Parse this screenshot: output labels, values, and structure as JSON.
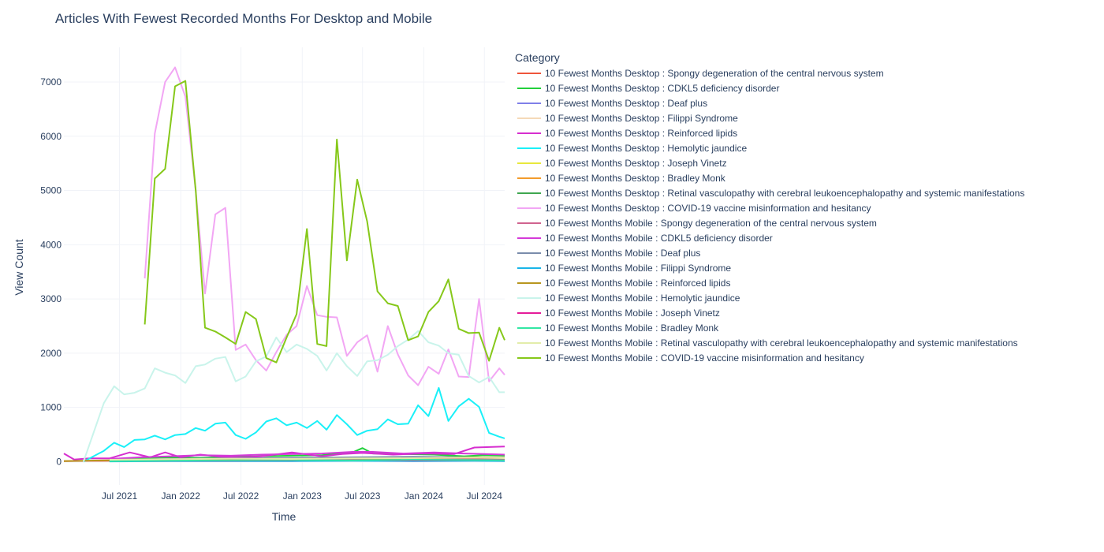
{
  "chart_data": {
    "type": "line",
    "title": "Articles With Fewest Recorded Months For Desktop and Mobile",
    "xlabel": "Time",
    "ylabel": "View Count",
    "x_ticks": [
      "Jul 2021",
      "Jan 2022",
      "Jul 2022",
      "Jan 2023",
      "Jul 2023",
      "Jan 2024",
      "Jul 2024"
    ],
    "y_ticks": [
      0,
      1000,
      2000,
      3000,
      4000,
      5000,
      6000,
      7000
    ],
    "xlim": [
      "2021-01-15",
      "2024-08-31"
    ],
    "ylim": [
      -430,
      7640
    ],
    "grid": true,
    "legend_title": "Category",
    "legend_position": "right",
    "series": [
      {
        "name": "10 Fewest Months Desktop : Spongy degeneration of the central nervous system",
        "color": "#EF553B",
        "x": [
          "2021-01-15",
          "2021-04-01",
          "2021-08-01",
          "2021-12-01",
          "2022-04-01",
          "2022-08-01",
          "2022-12-01",
          "2023-04-01",
          "2023-08-01",
          "2023-12-01",
          "2024-03-01",
          "2024-06-01",
          "2024-08-31"
        ],
        "y": [
          10,
          15,
          20,
          15,
          25,
          20,
          30,
          20,
          35,
          30,
          60,
          30,
          20
        ]
      },
      {
        "name": "10 Fewest Months Desktop : CDKL5 deficiency disorder",
        "color": "#22D03C",
        "x": [
          "2021-06-01",
          "2021-09-01",
          "2021-12-01",
          "2022-03-01",
          "2022-06-01",
          "2022-09-01",
          "2022-12-01",
          "2023-03-01",
          "2023-06-01",
          "2023-07-01",
          "2023-08-01",
          "2023-11-01",
          "2024-02-01",
          "2024-05-01",
          "2024-07-01",
          "2024-08-31"
        ],
        "y": [
          40,
          60,
          80,
          70,
          90,
          100,
          110,
          120,
          170,
          250,
          150,
          140,
          130,
          100,
          120,
          110
        ]
      },
      {
        "name": "10 Fewest Months Desktop : Deaf plus",
        "color": "#7F7FE8",
        "x": [
          "2021-06-01",
          "2021-12-01",
          "2022-06-01",
          "2022-12-01",
          "2023-06-01",
          "2023-12-01",
          "2024-06-01",
          "2024-08-31"
        ],
        "y": [
          20,
          30,
          25,
          40,
          35,
          45,
          40,
          30
        ]
      },
      {
        "name": "10 Fewest Months Desktop : Filippi Syndrome",
        "color": "#F5D9B8",
        "x": [
          "2021-06-01",
          "2021-12-01",
          "2022-06-01",
          "2022-12-01",
          "2023-06-01",
          "2023-12-01",
          "2024-06-01",
          "2024-08-31"
        ],
        "y": [
          15,
          20,
          20,
          25,
          30,
          25,
          35,
          25
        ]
      },
      {
        "name": "10 Fewest Months Desktop : Reinforced lipids",
        "color": "#D62ECF",
        "x": [
          "2021-01-15",
          "2021-02-15",
          "2021-04-01",
          "2021-06-01",
          "2021-08-01",
          "2021-10-01",
          "2021-11-15",
          "2022-01-01",
          "2022-03-01",
          "2022-05-01",
          "2022-07-01",
          "2022-09-01",
          "2022-12-01",
          "2023-03-01",
          "2023-05-01",
          "2023-07-01",
          "2023-10-01",
          "2024-01-01",
          "2024-04-01",
          "2024-06-01",
          "2024-08-31"
        ],
        "y": [
          150,
          40,
          60,
          60,
          170,
          80,
          170,
          80,
          130,
          90,
          80,
          100,
          170,
          100,
          140,
          160,
          130,
          150,
          140,
          260,
          280
        ]
      },
      {
        "name": "10 Fewest Months Desktop : Hemolytic jaundice",
        "color": "#1AF0F8",
        "x": [
          "2021-03-15",
          "2021-05-15",
          "2021-06-15",
          "2021-07-15",
          "2021-08-15",
          "2021-09-15",
          "2021-10-15",
          "2021-11-15",
          "2021-12-15",
          "2022-01-15",
          "2022-02-15",
          "2022-03-15",
          "2022-04-15",
          "2022-05-15",
          "2022-06-15",
          "2022-07-15",
          "2022-08-15",
          "2022-09-15",
          "2022-10-15",
          "2022-11-15",
          "2022-12-15",
          "2023-01-15",
          "2023-02-15",
          "2023-03-15",
          "2023-04-15",
          "2023-05-15",
          "2023-06-15",
          "2023-07-15",
          "2023-08-15",
          "2023-09-15",
          "2023-10-15",
          "2023-11-15",
          "2023-12-15",
          "2024-01-15",
          "2024-02-15",
          "2024-03-15",
          "2024-04-15",
          "2024-05-15",
          "2024-06-15",
          "2024-07-15",
          "2024-08-15",
          "2024-08-31"
        ],
        "y": [
          0,
          200,
          350,
          270,
          400,
          410,
          480,
          410,
          490,
          510,
          620,
          570,
          700,
          720,
          490,
          420,
          540,
          740,
          800,
          670,
          720,
          620,
          750,
          590,
          860,
          690,
          490,
          570,
          600,
          780,
          690,
          700,
          1040,
          840,
          1360,
          750,
          1020,
          1160,
          1010,
          530,
          460,
          430
        ]
      },
      {
        "name": "10 Fewest Months Desktop : Joseph Vinetz",
        "color": "#E8E83D",
        "x": [
          "2021-06-01",
          "2021-12-01",
          "2022-06-01",
          "2022-12-01",
          "2023-06-01",
          "2023-12-01",
          "2024-06-01",
          "2024-08-31"
        ],
        "y": [
          10,
          15,
          20,
          15,
          20,
          25,
          20,
          15
        ]
      },
      {
        "name": "10 Fewest Months Desktop : Bradley Monk",
        "color": "#F39C2C",
        "x": [
          "2021-06-01",
          "2021-12-01",
          "2022-06-01",
          "2022-12-01",
          "2023-06-01",
          "2023-12-01",
          "2024-06-01",
          "2024-08-31"
        ],
        "y": [
          20,
          25,
          30,
          35,
          30,
          40,
          50,
          40
        ]
      },
      {
        "name": "10 Fewest Months Desktop : Retinal vasculopathy with cerebral leukoencephalopathy and systemic manifestations",
        "color": "#3FA74F",
        "x": [
          "2021-06-01",
          "2021-12-01",
          "2022-06-01",
          "2022-12-01",
          "2023-06-01",
          "2023-12-01",
          "2024-06-01",
          "2024-08-31"
        ],
        "y": [
          30,
          40,
          50,
          45,
          55,
          60,
          70,
          60
        ]
      },
      {
        "name": "10 Fewest Months Desktop : COVID-19 vaccine misinformation and hesitancy",
        "color": "#F2A6F4",
        "x": [
          "2021-09-15",
          "2021-10-15",
          "2021-11-15",
          "2021-12-15",
          "2022-01-15",
          "2022-02-15",
          "2022-03-15",
          "2022-04-15",
          "2022-05-15",
          "2022-06-15",
          "2022-07-15",
          "2022-08-15",
          "2022-09-15",
          "2022-10-15",
          "2022-11-15",
          "2022-12-15",
          "2023-01-15",
          "2023-02-15",
          "2023-03-15",
          "2023-04-15",
          "2023-05-15",
          "2023-06-15",
          "2023-07-15",
          "2023-08-15",
          "2023-09-15",
          "2023-10-15",
          "2023-11-15",
          "2023-12-15",
          "2024-01-15",
          "2024-02-15",
          "2024-03-15",
          "2024-04-15",
          "2024-05-15",
          "2024-06-15",
          "2024-07-15",
          "2024-08-15",
          "2024-08-31"
        ],
        "y": [
          3380,
          6050,
          7000,
          7270,
          6730,
          5000,
          3100,
          4560,
          4680,
          2060,
          2160,
          1870,
          1680,
          2020,
          2340,
          2500,
          3240,
          2700,
          2670,
          2660,
          1950,
          2200,
          2330,
          1660,
          2500,
          1980,
          1590,
          1410,
          1750,
          1620,
          2070,
          1570,
          1560,
          3000,
          1480,
          1720,
          1600
        ]
      },
      {
        "name": "10 Fewest Months Mobile : Spongy degeneration of the central nervous system",
        "color": "#D0638F",
        "x": [
          "2021-06-01",
          "2021-12-01",
          "2022-06-01",
          "2022-12-01",
          "2023-06-01",
          "2023-12-01",
          "2024-06-01",
          "2024-08-31"
        ],
        "y": [
          25,
          30,
          40,
          35,
          45,
          50,
          60,
          50
        ]
      },
      {
        "name": "10 Fewest Months Mobile : CDKL5 deficiency disorder",
        "color": "#D43AD8",
        "x": [
          "2021-06-01",
          "2021-09-01",
          "2021-12-01",
          "2022-03-01",
          "2022-06-01",
          "2022-09-01",
          "2022-12-01",
          "2023-03-01",
          "2023-06-01",
          "2023-08-01",
          "2023-11-01",
          "2024-02-01",
          "2024-05-01",
          "2024-07-01",
          "2024-08-31"
        ],
        "y": [
          50,
          80,
          100,
          120,
          110,
          130,
          140,
          150,
          180,
          180,
          150,
          170,
          150,
          140,
          130
        ]
      },
      {
        "name": "10 Fewest Months Mobile : Deaf plus",
        "color": "#7A8CAB",
        "x": [
          "2021-06-01",
          "2021-12-01",
          "2022-06-01",
          "2022-12-01",
          "2023-06-01",
          "2023-12-01",
          "2024-06-01",
          "2024-08-31"
        ],
        "y": [
          30,
          50,
          60,
          70,
          80,
          90,
          80,
          70
        ]
      },
      {
        "name": "10 Fewest Months Mobile : Filippi Syndrome",
        "color": "#19B5E8",
        "x": [
          "2021-06-01",
          "2021-12-01",
          "2022-06-01",
          "2022-12-01",
          "2023-06-01",
          "2023-12-01",
          "2024-06-01",
          "2024-08-31"
        ],
        "y": [
          5,
          10,
          10,
          10,
          15,
          10,
          15,
          10
        ]
      },
      {
        "name": "10 Fewest Months Mobile : Reinforced lipids",
        "color": "#B8961F",
        "x": [
          "2021-01-15",
          "2021-04-01",
          "2021-08-01",
          "2021-12-01",
          "2022-04-01",
          "2022-08-01",
          "2022-12-01",
          "2023-04-01",
          "2023-08-01",
          "2023-12-01",
          "2024-03-01",
          "2024-06-01",
          "2024-08-31"
        ],
        "y": [
          10,
          20,
          30,
          40,
          50,
          35,
          45,
          50,
          55,
          60,
          70,
          80,
          70
        ]
      },
      {
        "name": "10 Fewest Months Mobile : Hemolytic jaundice",
        "color": "#C9F4EB",
        "x": [
          "2021-03-15",
          "2021-05-15",
          "2021-06-15",
          "2021-07-15",
          "2021-08-15",
          "2021-09-15",
          "2021-10-15",
          "2021-11-15",
          "2021-12-15",
          "2022-01-15",
          "2022-02-15",
          "2022-03-15",
          "2022-04-15",
          "2022-05-15",
          "2022-06-15",
          "2022-07-15",
          "2022-08-15",
          "2022-09-15",
          "2022-10-15",
          "2022-11-15",
          "2022-12-15",
          "2023-01-15",
          "2023-02-15",
          "2023-03-15",
          "2023-04-15",
          "2023-05-15",
          "2023-06-15",
          "2023-07-15",
          "2023-08-15",
          "2023-09-15",
          "2023-10-15",
          "2023-11-15",
          "2023-12-15",
          "2024-01-15",
          "2024-02-15",
          "2024-03-15",
          "2024-04-15",
          "2024-05-15",
          "2024-06-15",
          "2024-07-15",
          "2024-08-15",
          "2024-08-31"
        ],
        "y": [
          0,
          1080,
          1390,
          1240,
          1270,
          1350,
          1720,
          1640,
          1590,
          1450,
          1760,
          1790,
          1900,
          1930,
          1480,
          1570,
          1850,
          1940,
          2290,
          2020,
          2160,
          2080,
          1950,
          1680,
          2000,
          1760,
          1580,
          1850,
          1870,
          1970,
          2130,
          2250,
          2410,
          2200,
          2140,
          2000,
          1970,
          1580,
          1460,
          1560,
          1280,
          1280
        ]
      },
      {
        "name": "10 Fewest Months Mobile : Joseph Vinetz",
        "color": "#E51C9A",
        "x": [
          "2021-06-01",
          "2021-12-01",
          "2022-06-01",
          "2022-12-01",
          "2023-06-01",
          "2023-12-01",
          "2024-06-01",
          "2024-08-31"
        ],
        "y": [
          15,
          20,
          20,
          25,
          30,
          25,
          30,
          25
        ]
      },
      {
        "name": "10 Fewest Months Mobile : Bradley Monk",
        "color": "#33E7A4",
        "x": [
          "2021-06-01",
          "2021-12-01",
          "2022-06-01",
          "2022-12-01",
          "2023-06-01",
          "2023-12-01",
          "2024-06-01",
          "2024-08-31"
        ],
        "y": [
          10,
          20,
          25,
          30,
          25,
          35,
          30,
          25
        ]
      },
      {
        "name": "10 Fewest Months Mobile : Retinal vasculopathy with cerebral leukoencephalopathy and systemic manifestations",
        "color": "#E3EDAA",
        "x": [
          "2021-06-01",
          "2021-12-01",
          "2022-06-01",
          "2022-12-01",
          "2023-06-01",
          "2023-12-01",
          "2024-06-01",
          "2024-08-31"
        ],
        "y": [
          35,
          45,
          55,
          50,
          60,
          65,
          75,
          65
        ]
      },
      {
        "name": "10 Fewest Months Mobile : COVID-19 vaccine misinformation and hesitancy",
        "color": "#86C81A",
        "x": [
          "2021-09-15",
          "2021-10-15",
          "2021-11-15",
          "2021-12-15",
          "2022-01-15",
          "2022-02-15",
          "2022-03-15",
          "2022-04-15",
          "2022-05-15",
          "2022-06-15",
          "2022-07-15",
          "2022-08-15",
          "2022-09-15",
          "2022-10-15",
          "2022-11-15",
          "2022-12-15",
          "2023-01-15",
          "2023-02-15",
          "2023-03-15",
          "2023-04-15",
          "2023-05-15",
          "2023-06-15",
          "2023-07-15",
          "2023-08-15",
          "2023-09-15",
          "2023-10-15",
          "2023-11-15",
          "2023-12-15",
          "2024-01-15",
          "2024-02-15",
          "2024-03-15",
          "2024-04-15",
          "2024-05-15",
          "2024-06-15",
          "2024-07-15",
          "2024-08-15",
          "2024-08-31"
        ],
        "y": [
          2530,
          5220,
          5400,
          6920,
          7020,
          5000,
          2470,
          2400,
          2290,
          2170,
          2760,
          2630,
          1910,
          1830,
          2290,
          2720,
          4290,
          2170,
          2130,
          5940,
          3710,
          5200,
          4430,
          3140,
          2920,
          2870,
          2240,
          2310,
          2760,
          2960,
          3360,
          2450,
          2370,
          2380,
          1860,
          2470,
          2240
        ]
      }
    ]
  }
}
